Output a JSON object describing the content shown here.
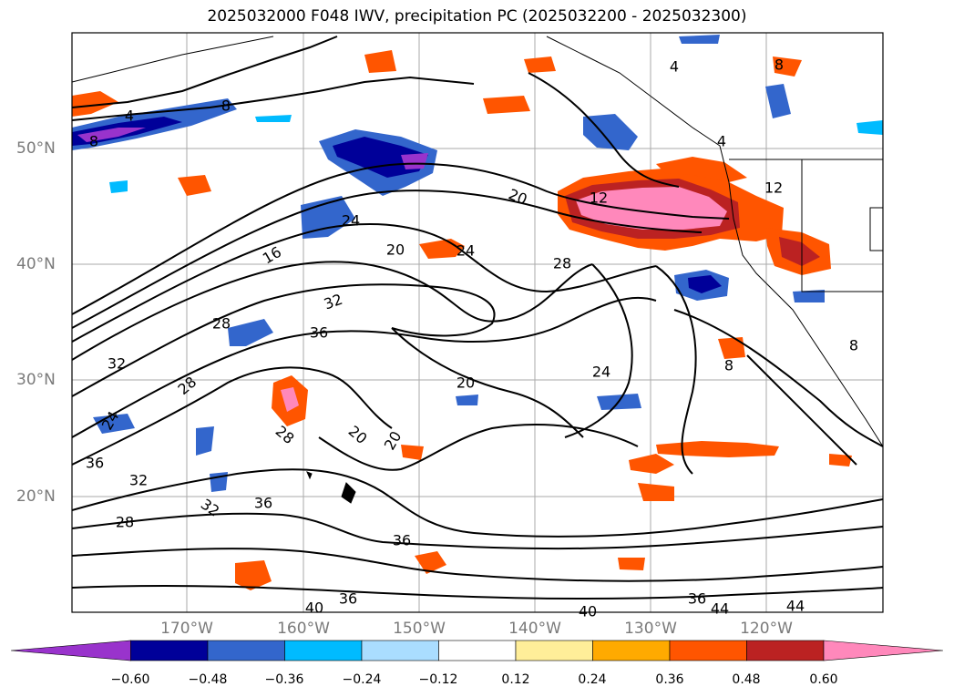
{
  "title": "2025032000 F048 IWV, precipitation PC (2025032200 - 2025032300)",
  "map": {
    "lon_labels": [
      "170°W",
      "160°W",
      "150°W",
      "140°W",
      "130°W",
      "120°W"
    ],
    "lat_labels": [
      "50°N",
      "40°N",
      "30°N",
      "20°N"
    ],
    "contour_labels": [
      "4",
      "8",
      "4",
      "8",
      "4",
      "8",
      "12",
      "12",
      "16",
      "20",
      "20",
      "20",
      "20",
      "20",
      "24",
      "24",
      "24",
      "24",
      "28",
      "28",
      "28",
      "28",
      "28",
      "32",
      "32",
      "32",
      "32",
      "36",
      "36",
      "36",
      "36",
      "36",
      "36",
      "40",
      "40",
      "44",
      "44",
      "8",
      "8"
    ]
  },
  "colorbar": {
    "ticks": [
      "−0.60",
      "−0.48",
      "−0.36",
      "−0.24",
      "−0.12",
      "0.12",
      "0.24",
      "0.36",
      "0.48",
      "0.60"
    ],
    "colors": [
      "#9933cc",
      "#000099",
      "#3366cc",
      "#00bbff",
      "#aaddff",
      "#ffffff",
      "#ffee99",
      "#ffaa00",
      "#ff5500",
      "#bb2222",
      "#ff88bb"
    ]
  }
}
